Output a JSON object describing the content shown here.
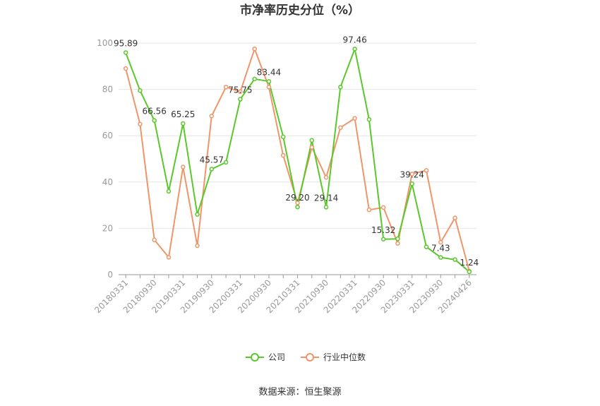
{
  "chart_data": {
    "type": "line",
    "title": "市净率历史分位（%）",
    "source": "数据来源：恒生聚源",
    "ylim": [
      0,
      100
    ],
    "yticks": [
      "0",
      "20",
      "40",
      "60",
      "80",
      "100"
    ],
    "xtick_labels": [
      "20180331",
      "20180930",
      "20190331",
      "20190930",
      "20200331",
      "20200930",
      "20210331",
      "20210930",
      "20220331",
      "20220930",
      "20230331",
      "20230930",
      "20240426"
    ],
    "grid": true,
    "legend_position": "bottom",
    "x": [
      "20180331",
      "20180630",
      "20180930",
      "20181231",
      "20190331",
      "20190630",
      "20190930",
      "20191231",
      "20200331",
      "20200630",
      "20200930",
      "20201231",
      "20210331",
      "20210630",
      "20210930",
      "20211231",
      "20220331",
      "20220630",
      "20220930",
      "20221231",
      "20230331",
      "20230630",
      "20230930",
      "20231231",
      "20240426"
    ],
    "series": [
      {
        "name": "公司",
        "color": "#5ac82a",
        "values": [
          95.89,
          79.5,
          66.56,
          36.0,
          65.25,
          26.0,
          45.57,
          48.5,
          75.75,
          84.5,
          83.44,
          59.5,
          29.2,
          58.0,
          29.14,
          81.0,
          97.46,
          67.0,
          15.32,
          15.5,
          39.24,
          12.0,
          7.43,
          6.5,
          1.24
        ]
      },
      {
        "name": "行业中位数",
        "color": "#f0956a",
        "values": [
          89.0,
          65.0,
          15.0,
          7.5,
          46.5,
          12.5,
          68.5,
          81.0,
          79.0,
          97.5,
          81.0,
          51.5,
          31.0,
          55.0,
          42.0,
          63.5,
          67.5,
          28.0,
          29.0,
          13.5,
          43.5,
          45.0,
          14.0,
          24.5,
          1.5
        ]
      }
    ],
    "data_labels": [
      {
        "index": 0,
        "text": "95.89"
      },
      {
        "index": 2,
        "text": "66.56"
      },
      {
        "index": 4,
        "text": "65.25"
      },
      {
        "index": 6,
        "text": "45.57"
      },
      {
        "index": 8,
        "text": "75.75"
      },
      {
        "index": 10,
        "text": "83.44"
      },
      {
        "index": 12,
        "text": "29.20"
      },
      {
        "index": 14,
        "text": "29.14"
      },
      {
        "index": 16,
        "text": "97.46"
      },
      {
        "index": 18,
        "text": "15.32"
      },
      {
        "index": 20,
        "text": "39.24"
      },
      {
        "index": 22,
        "text": "7.43"
      },
      {
        "index": 24,
        "text": "1.24"
      }
    ]
  }
}
